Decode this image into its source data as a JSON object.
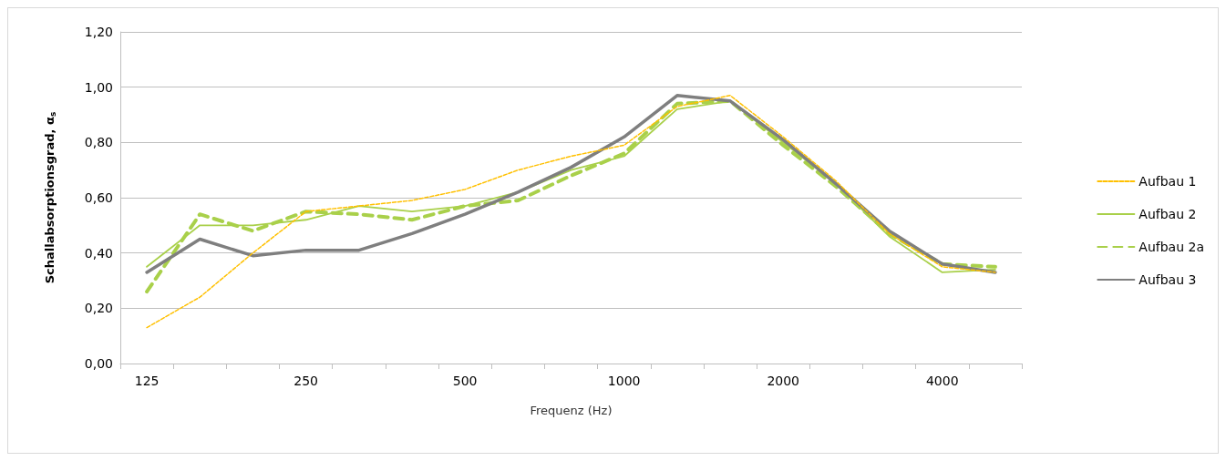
{
  "chart_data": {
    "type": "line",
    "xlabel": "Frequenz (Hz)",
    "ylabel": "Schallabsorptionsgrad, α$_{s}$",
    "categories": [
      "125",
      null,
      null,
      "250",
      null,
      null,
      "500",
      null,
      null,
      "1000",
      null,
      null,
      "2000",
      null,
      null,
      "4000",
      null
    ],
    "series": [
      {
        "name": "Aufbau 1",
        "color": "#ffc000",
        "line_style": "dashed",
        "values": [
          0.13,
          0.24,
          0.4,
          0.55,
          0.57,
          0.59,
          0.63,
          0.7,
          0.75,
          0.79,
          0.93,
          0.97,
          0.82,
          0.66,
          0.47,
          0.35,
          0.33
        ]
      },
      {
        "name": "Aufbau 2",
        "color": "#a9d04a",
        "line_style": "solid",
        "values": [
          0.35,
          0.5,
          0.5,
          0.52,
          0.57,
          0.55,
          0.57,
          0.62,
          0.7,
          0.75,
          0.92,
          0.95,
          0.8,
          0.65,
          0.46,
          0.33,
          0.34
        ]
      },
      {
        "name": "Aufbau 2a",
        "color": "#a9d04a",
        "line_style": "dashed",
        "values": [
          0.26,
          0.54,
          0.48,
          0.55,
          0.54,
          0.52,
          0.57,
          0.59,
          0.68,
          0.76,
          0.94,
          0.95,
          0.79,
          0.64,
          0.47,
          0.36,
          0.35
        ]
      },
      {
        "name": "Aufbau 3",
        "color": "#7f7f7f",
        "line_style": "solid",
        "values": [
          0.33,
          0.45,
          0.39,
          0.41,
          0.41,
          0.47,
          0.54,
          0.62,
          0.71,
          0.82,
          0.97,
          0.95,
          0.81,
          0.65,
          0.48,
          0.36,
          0.33
        ]
      }
    ],
    "ylim": [
      0,
      1.2
    ],
    "yticks": [
      {
        "value": 0,
        "label": "0,00"
      },
      {
        "value": 0.2,
        "label": "0,20"
      },
      {
        "value": 0.4,
        "label": "0,40"
      },
      {
        "value": 0.6,
        "label": "0,60"
      },
      {
        "value": 0.8,
        "label": "0,80"
      },
      {
        "value": 1,
        "label": "1,00"
      },
      {
        "value": 1.2,
        "label": "1,20"
      }
    ],
    "grid": "y",
    "legend": "right",
    "marker": "none"
  }
}
